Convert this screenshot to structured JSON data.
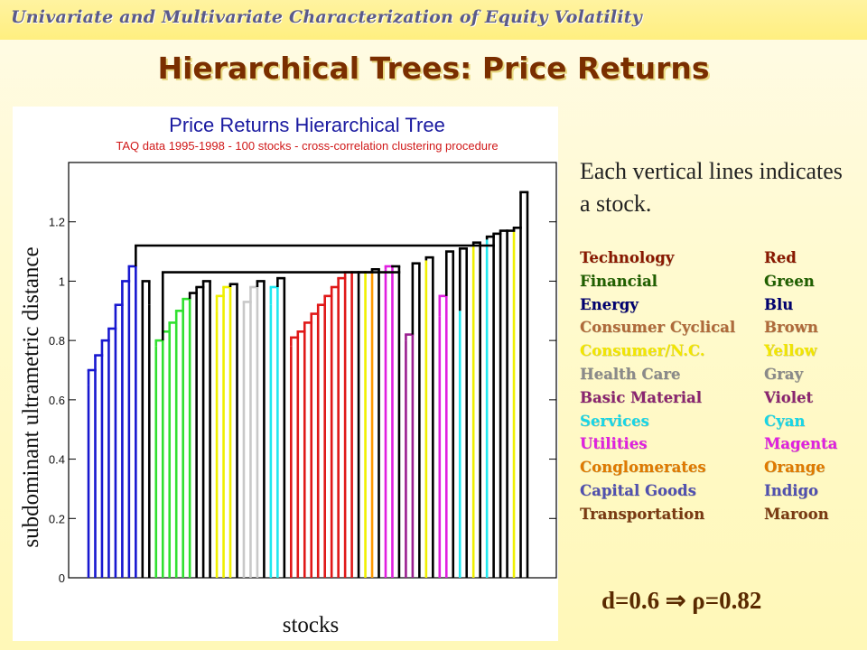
{
  "header": {
    "text": "Univariate and Multivariate Characterization of Equity Volatility"
  },
  "slide": {
    "title": "Hierarchical Trees: Price Returns"
  },
  "note": {
    "text": "Each vertical lines indicates a stock."
  },
  "formula": {
    "left": "d=0.6 ",
    "arrow": "⇒",
    "right": " ρ=0.82"
  },
  "legend": [
    {
      "sector": "Technology",
      "color_name": "Red",
      "color": "#8a1800"
    },
    {
      "sector": "Financial",
      "color_name": "Green",
      "color": "#206000"
    },
    {
      "sector": "Energy",
      "color_name": "Blu",
      "color": "#000070"
    },
    {
      "sector": "Consumer Cyclical",
      "color_name": "Brown",
      "color": "#b06a3a"
    },
    {
      "sector": "Consumer/N.C.",
      "color_name": "Yellow",
      "color": "#f2e600"
    },
    {
      "sector": "Health Care",
      "color_name": "Gray",
      "color": "#8a8a8a"
    },
    {
      "sector": "Basic Material",
      "color_name": "Violet",
      "color": "#8a2470"
    },
    {
      "sector": "Services",
      "color_name": "Cyan",
      "color": "#18d6e6"
    },
    {
      "sector": "Utilities",
      "color_name": "Magenta",
      "color": "#e020e0"
    },
    {
      "sector": "Conglomerates",
      "color_name": "Orange",
      "color": "#e07a00"
    },
    {
      "sector": "Capital Goods",
      "color_name": "Indigo",
      "color": "#5050b0"
    },
    {
      "sector": "Transportation",
      "color_name": "Maroon",
      "color": "#7a3a12"
    }
  ],
  "chart_data": {
    "type": "dendrogram",
    "title": "Price Returns Hierarchical Tree",
    "subtitle": "TAQ data 1995-1998 - 100 stocks - cross-correlation clustering procedure",
    "xlabel": "stocks",
    "ylabel": "subdominant ultrametric distance",
    "ylim": [
      0,
      1.4
    ],
    "yticks": [
      "0",
      "0.2",
      "0.4",
      "0.6",
      "0.8",
      "1",
      "1.2"
    ],
    "grid": false,
    "series_colors": {
      "energy": "#1818d0",
      "financial": "#30e030",
      "consumer_nc": "#f0f000",
      "health": "#c8c8c8",
      "services": "#20e8f0",
      "technology": "#e01818",
      "orange": "#ff9a00",
      "utilities": "#e020e0",
      "violet": "#9a2090",
      "black": "#000000"
    },
    "leaves": [
      {
        "c": "energy",
        "h": 0.65
      },
      {
        "c": "energy",
        "h": 0.7
      },
      {
        "c": "energy",
        "h": 0.75
      },
      {
        "c": "energy",
        "h": 0.8
      },
      {
        "c": "energy",
        "h": 0.84
      },
      {
        "c": "energy",
        "h": 0.92
      },
      {
        "c": "energy",
        "h": 1.0
      },
      {
        "c": "energy",
        "h": 1.05
      },
      {
        "c": "black",
        "h": 1.0
      },
      {
        "c": "black",
        "h": 0.92
      },
      {
        "c": "financial",
        "h": 0.78
      },
      {
        "c": "financial",
        "h": 0.8
      },
      {
        "c": "financial",
        "h": 0.83
      },
      {
        "c": "financial",
        "h": 0.86
      },
      {
        "c": "financial",
        "h": 0.9
      },
      {
        "c": "financial",
        "h": 0.94
      },
      {
        "c": "black",
        "h": 0.96
      },
      {
        "c": "black",
        "h": 0.98
      },
      {
        "c": "black",
        "h": 1.0
      },
      {
        "c": "consumer_nc",
        "h": 0.9
      },
      {
        "c": "consumer_nc",
        "h": 0.95
      },
      {
        "c": "consumer_nc",
        "h": 0.98
      },
      {
        "c": "black",
        "h": 0.99
      },
      {
        "c": "health",
        "h": 0.84
      },
      {
        "c": "health",
        "h": 0.93
      },
      {
        "c": "health",
        "h": 0.98
      },
      {
        "c": "black",
        "h": 1.0
      },
      {
        "c": "services",
        "h": 0.92
      },
      {
        "c": "services",
        "h": 0.98
      },
      {
        "c": "black",
        "h": 1.01
      },
      {
        "c": "technology",
        "h": 0.78
      },
      {
        "c": "technology",
        "h": 0.81
      },
      {
        "c": "technology",
        "h": 0.83
      },
      {
        "c": "technology",
        "h": 0.86
      },
      {
        "c": "technology",
        "h": 0.89
      },
      {
        "c": "technology",
        "h": 0.92
      },
      {
        "c": "technology",
        "h": 0.95
      },
      {
        "c": "technology",
        "h": 0.98
      },
      {
        "c": "technology",
        "h": 1.01
      },
      {
        "c": "technology",
        "h": 1.03
      },
      {
        "c": "black",
        "h": 1.03
      },
      {
        "c": "consumer_nc",
        "h": 1.03
      },
      {
        "c": "orange",
        "h": 1.03
      },
      {
        "c": "black",
        "h": 1.04
      },
      {
        "c": "utilities",
        "h": 1.04
      },
      {
        "c": "utilities",
        "h": 1.05
      },
      {
        "c": "black",
        "h": 1.05
      },
      {
        "c": "violet",
        "h": 0.8
      },
      {
        "c": "violet",
        "h": 0.82
      },
      {
        "c": "black",
        "h": 1.06
      },
      {
        "c": "consumer_nc",
        "h": 1.07
      },
      {
        "c": "black",
        "h": 1.08
      },
      {
        "c": "utilities",
        "h": 0.88
      },
      {
        "c": "utilities",
        "h": 0.95
      },
      {
        "c": "black",
        "h": 1.1
      },
      {
        "c": "services",
        "h": 0.9
      },
      {
        "c": "black",
        "h": 1.11
      },
      {
        "c": "consumer_nc",
        "h": 1.12
      },
      {
        "c": "black",
        "h": 1.13
      },
      {
        "c": "services",
        "h": 1.14
      },
      {
        "c": "black",
        "h": 1.15
      },
      {
        "c": "black",
        "h": 1.16
      },
      {
        "c": "black",
        "h": 1.17
      },
      {
        "c": "consumer_nc",
        "h": 1.17
      },
      {
        "c": "black",
        "h": 1.18
      },
      {
        "c": "black",
        "h": 1.3
      }
    ],
    "merges": [
      {
        "x0": 0,
        "x1": 1,
        "h": 0.7
      },
      {
        "x0": 1,
        "x1": 2,
        "h": 0.75
      },
      {
        "x0": 2,
        "x1": 3,
        "h": 0.8
      },
      {
        "x0": 3,
        "x1": 4,
        "h": 0.84
      },
      {
        "x0": 4,
        "x1": 5,
        "h": 0.92
      },
      {
        "x0": 5,
        "x1": 6,
        "h": 1.0
      },
      {
        "x0": 6,
        "x1": 7,
        "h": 1.05
      },
      {
        "x0": 8,
        "x1": 9,
        "h": 1.0
      },
      {
        "x0": 10,
        "x1": 11,
        "h": 0.8
      },
      {
        "x0": 11,
        "x1": 12,
        "h": 0.83
      },
      {
        "x0": 12,
        "x1": 13,
        "h": 0.86
      },
      {
        "x0": 13,
        "x1": 14,
        "h": 0.9
      },
      {
        "x0": 14,
        "x1": 15,
        "h": 0.94
      },
      {
        "x0": 15,
        "x1": 16,
        "h": 0.96
      },
      {
        "x0": 16,
        "x1": 17,
        "h": 0.98
      },
      {
        "x0": 17,
        "x1": 18,
        "h": 1.0
      },
      {
        "x0": 19,
        "x1": 20,
        "h": 0.95
      },
      {
        "x0": 20,
        "x1": 21,
        "h": 0.98
      },
      {
        "x0": 21,
        "x1": 22,
        "h": 0.99
      },
      {
        "x0": 23,
        "x1": 24,
        "h": 0.93
      },
      {
        "x0": 24,
        "x1": 25,
        "h": 0.98
      },
      {
        "x0": 25,
        "x1": 26,
        "h": 1.0
      },
      {
        "x0": 27,
        "x1": 28,
        "h": 0.98
      },
      {
        "x0": 28,
        "x1": 29,
        "h": 1.01
      },
      {
        "x0": 30,
        "x1": 31,
        "h": 0.81
      },
      {
        "x0": 31,
        "x1": 32,
        "h": 0.83
      },
      {
        "x0": 32,
        "x1": 33,
        "h": 0.86
      },
      {
        "x0": 33,
        "x1": 34,
        "h": 0.89
      },
      {
        "x0": 34,
        "x1": 35,
        "h": 0.92
      },
      {
        "x0": 35,
        "x1": 36,
        "h": 0.95
      },
      {
        "x0": 36,
        "x1": 37,
        "h": 0.98
      },
      {
        "x0": 37,
        "x1": 38,
        "h": 1.01
      },
      {
        "x0": 38,
        "x1": 39,
        "h": 1.03
      },
      {
        "x0": 39,
        "x1": 40,
        "h": 1.03
      },
      {
        "x0": 40,
        "x1": 41,
        "h": 1.03
      },
      {
        "x0": 41,
        "x1": 42,
        "h": 1.03
      },
      {
        "x0": 42,
        "x1": 43,
        "h": 1.04
      },
      {
        "x0": 44,
        "x1": 45,
        "h": 1.05
      },
      {
        "x0": 45,
        "x1": 46,
        "h": 1.05
      },
      {
        "x0": 47,
        "x1": 48,
        "h": 0.82
      },
      {
        "x0": 48,
        "x1": 49,
        "h": 1.06
      },
      {
        "x0": 50,
        "x1": 51,
        "h": 1.08
      },
      {
        "x0": 52,
        "x1": 53,
        "h": 0.95
      },
      {
        "x0": 53,
        "x1": 54,
        "h": 1.1
      },
      {
        "x0": 55,
        "x1": 56,
        "h": 1.11
      },
      {
        "x0": 57,
        "x1": 58,
        "h": 1.13
      },
      {
        "x0": 59,
        "x1": 60,
        "h": 1.15
      },
      {
        "x0": 60,
        "x1": 61,
        "h": 1.16
      },
      {
        "x0": 61,
        "x1": 62,
        "h": 1.17
      },
      {
        "x0": 62,
        "x1": 63,
        "h": 1.17
      },
      {
        "x0": 63,
        "x1": 64,
        "h": 1.18
      },
      {
        "x0": 64,
        "x1": 65,
        "h": 1.3
      },
      {
        "x0": 11,
        "x1": 46,
        "h": 1.03
      },
      {
        "x0": 7,
        "x1": 60,
        "h": 1.12
      }
    ]
  }
}
